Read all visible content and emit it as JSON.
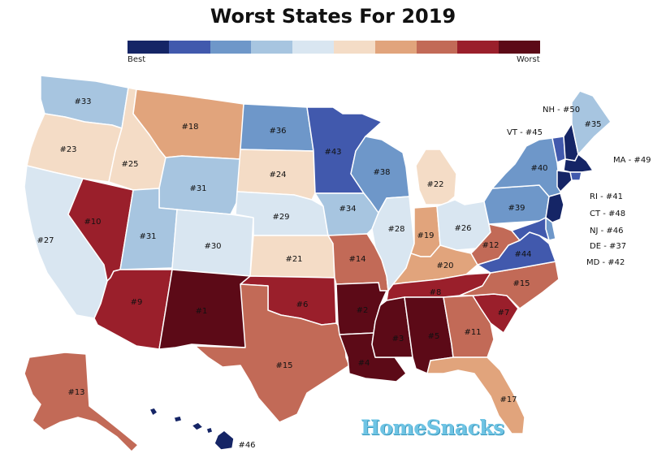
{
  "title": "Worst States For 2019",
  "legend": {
    "low_label": "Best",
    "high_label": "Worst",
    "colors": [
      "#152566",
      "#4159ad",
      "#6e97c9",
      "#a7c5e0",
      "#d9e6f1",
      "#f4dcc6",
      "#e1a47c",
      "#c26a57",
      "#9a1f2b",
      "#5c0a17"
    ]
  },
  "states": [
    {
      "id": "WA",
      "label": "#33",
      "color": "#a7c5e0"
    },
    {
      "id": "OR",
      "label": "#23",
      "color": "#f4dcc6"
    },
    {
      "id": "CA",
      "label": "#27",
      "color": "#d9e6f1"
    },
    {
      "id": "NV",
      "label": "#10",
      "color": "#9a1f2b"
    },
    {
      "id": "ID",
      "label": "#25",
      "color": "#f4dcc6"
    },
    {
      "id": "MT",
      "label": "#18",
      "color": "#e1a47c"
    },
    {
      "id": "WY",
      "label": "#31",
      "color": "#a7c5e0"
    },
    {
      "id": "UT",
      "label": "#31",
      "color": "#a7c5e0"
    },
    {
      "id": "AZ",
      "label": "#9",
      "color": "#9a1f2b"
    },
    {
      "id": "CO",
      "label": "#30",
      "color": "#d9e6f1"
    },
    {
      "id": "NM",
      "label": "#1",
      "color": "#5c0a17"
    },
    {
      "id": "ND",
      "label": "#36",
      "color": "#6e97c9"
    },
    {
      "id": "SD",
      "label": "#24",
      "color": "#f4dcc6"
    },
    {
      "id": "NE",
      "label": "#29",
      "color": "#d9e6f1"
    },
    {
      "id": "KS",
      "label": "#21",
      "color": "#f4dcc6"
    },
    {
      "id": "OK",
      "label": "#6",
      "color": "#9a1f2b"
    },
    {
      "id": "TX",
      "label": "#15",
      "color": "#c26a57"
    },
    {
      "id": "MN",
      "label": "#43",
      "color": "#4159ad"
    },
    {
      "id": "IA",
      "label": "#34",
      "color": "#a7c5e0"
    },
    {
      "id": "MO",
      "label": "#14",
      "color": "#c26a57"
    },
    {
      "id": "AR",
      "label": "#2",
      "color": "#5c0a17"
    },
    {
      "id": "LA",
      "label": "#4",
      "color": "#5c0a17"
    },
    {
      "id": "WI",
      "label": "#38",
      "color": "#6e97c9"
    },
    {
      "id": "IL",
      "label": "#28",
      "color": "#d9e6f1"
    },
    {
      "id": "MI",
      "label": "#22",
      "color": "#f4dcc6"
    },
    {
      "id": "IN",
      "label": "#19",
      "color": "#e1a47c"
    },
    {
      "id": "OH",
      "label": "#26",
      "color": "#d9e6f1"
    },
    {
      "id": "KY",
      "label": "#20",
      "color": "#e1a47c"
    },
    {
      "id": "TN",
      "label": "#8",
      "color": "#9a1f2b"
    },
    {
      "id": "MS",
      "label": "#3",
      "color": "#5c0a17"
    },
    {
      "id": "AL",
      "label": "#5",
      "color": "#5c0a17"
    },
    {
      "id": "GA",
      "label": "#11",
      "color": "#c26a57"
    },
    {
      "id": "FL",
      "label": "#17",
      "color": "#e1a47c"
    },
    {
      "id": "SC",
      "label": "#7",
      "color": "#9a1f2b"
    },
    {
      "id": "NC",
      "label": "#15",
      "color": "#c26a57"
    },
    {
      "id": "VA",
      "label": "#44",
      "color": "#4159ad"
    },
    {
      "id": "WV",
      "label": "#12",
      "color": "#c26a57"
    },
    {
      "id": "PA",
      "label": "#39",
      "color": "#6e97c9"
    },
    {
      "id": "NY",
      "label": "#40",
      "color": "#6e97c9"
    },
    {
      "id": "VT",
      "label": "",
      "color": "#4159ad"
    },
    {
      "id": "NH",
      "label": "",
      "color": "#152566"
    },
    {
      "id": "ME",
      "label": "#35",
      "color": "#a7c5e0"
    },
    {
      "id": "MA",
      "label": "",
      "color": "#152566"
    },
    {
      "id": "RI",
      "label": "",
      "color": "#4159ad"
    },
    {
      "id": "CT",
      "label": "",
      "color": "#152566"
    },
    {
      "id": "NJ",
      "label": "",
      "color": "#152566"
    },
    {
      "id": "DE",
      "label": "",
      "color": "#6e97c9"
    },
    {
      "id": "MD",
      "label": "",
      "color": "#4159ad"
    },
    {
      "id": "AK",
      "label": "#13",
      "color": "#c26a57"
    },
    {
      "id": "HI",
      "label": "#46",
      "color": "#152566"
    }
  ],
  "side_labels": {
    "nh": "NH - #50",
    "vt": "VT - #45",
    "ma": "MA - #49",
    "ri": "RI - #41",
    "ct": "CT - #48",
    "nj": "NJ - #46",
    "de": "DE - #37",
    "md": "MD - #42"
  },
  "watermark": "HomeSnacks"
}
